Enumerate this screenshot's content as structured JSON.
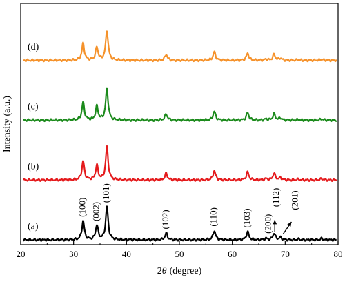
{
  "chart_data": {
    "type": "line",
    "title": "",
    "xlabel": "2θ (degree)",
    "xlabel_parts": {
      "symbol": "2",
      "variable": "θ",
      "unit": "(degree)"
    },
    "ylabel": "Intensity (a.u.)",
    "xlim": [
      20,
      80
    ],
    "xticks": [
      20,
      30,
      40,
      50,
      60,
      70,
      80
    ],
    "grid": false,
    "legend": "none",
    "peaks": [
      {
        "two_theta": 31.8,
        "rel_intensity": 0.57,
        "hkl": "(100)"
      },
      {
        "two_theta": 34.4,
        "rel_intensity": 0.44,
        "hkl": "(002)"
      },
      {
        "two_theta": 36.3,
        "rel_intensity": 1.0,
        "hkl": "(101)"
      },
      {
        "two_theta": 47.5,
        "rel_intensity": 0.2,
        "hkl": "(102)"
      },
      {
        "two_theta": 56.6,
        "rel_intensity": 0.28,
        "hkl": "(110)"
      },
      {
        "two_theta": 62.9,
        "rel_intensity": 0.24,
        "hkl": "(103)"
      },
      {
        "two_theta": 66.4,
        "rel_intensity": 0.04,
        "hkl": "(200)"
      },
      {
        "two_theta": 67.9,
        "rel_intensity": 0.2,
        "hkl": "(112)"
      },
      {
        "two_theta": 69.1,
        "rel_intensity": 0.07,
        "hkl": "(201)"
      },
      {
        "two_theta": 72.5,
        "rel_intensity": 0.02,
        "hkl": ""
      },
      {
        "two_theta": 76.9,
        "rel_intensity": 0.04,
        "hkl": ""
      }
    ],
    "series": [
      {
        "name": "(a)",
        "color": "#000000",
        "baseline": 0.0,
        "scale": 1.0
      },
      {
        "name": "(b)",
        "color": "#e41a1c",
        "baseline": 1.0,
        "scale": 1.0
      },
      {
        "name": "(c)",
        "color": "#1b8a1b",
        "baseline": 2.0,
        "scale": 0.95
      },
      {
        "name": "(d)",
        "color": "#f5922b",
        "baseline": 3.0,
        "scale": 0.9
      }
    ],
    "ylim": [
      -0.08,
      3.95
    ],
    "peak_label_annotations": [
      {
        "hkl": "(100)",
        "arrow": false
      },
      {
        "hkl": "(002)",
        "arrow": false
      },
      {
        "hkl": "(101)",
        "arrow": false
      },
      {
        "hkl": "(102)",
        "arrow": false
      },
      {
        "hkl": "(110)",
        "arrow": false
      },
      {
        "hkl": "(103)",
        "arrow": false
      },
      {
        "hkl": "(200)",
        "arrow": false
      },
      {
        "hkl": "(112)",
        "arrow": true
      },
      {
        "hkl": "(201)",
        "arrow": true
      }
    ]
  }
}
